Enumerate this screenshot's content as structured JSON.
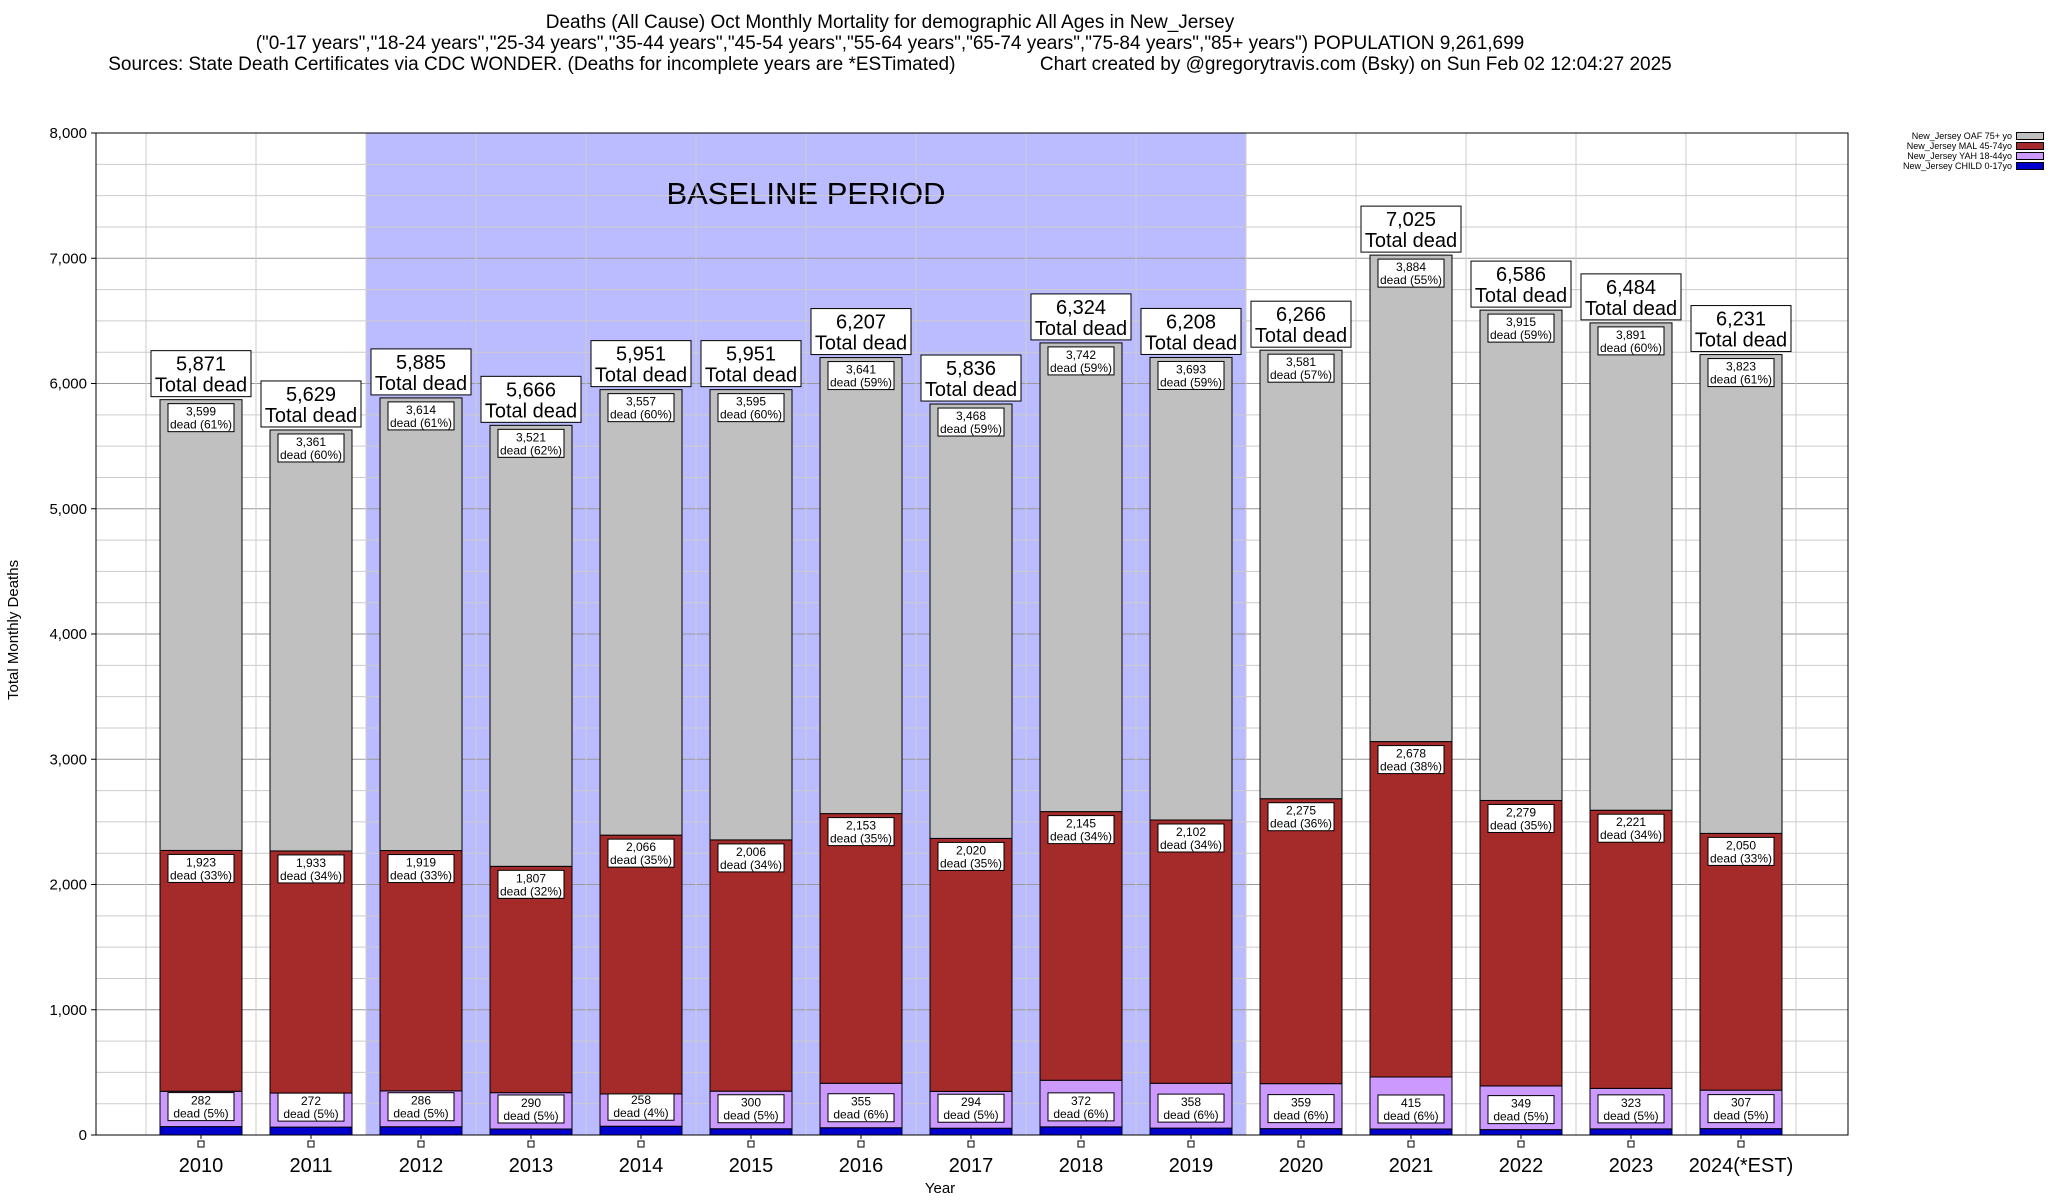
{
  "header": {
    "line1": "Deaths (All Cause) Oct Monthly Mortality for demographic All Ages in New_Jersey",
    "line2": "(\"0-17 years\",\"18-24 years\",\"25-34 years\",\"35-44 years\",\"45-54 years\",\"55-64 years\",\"65-74 years\",\"75-84 years\",\"85+ years\") POPULATION 9,261,699",
    "line3": "Sources: State Death Certificates via CDC WONDER. (Deaths for incomplete years are *ESTimated)                Chart created by @gregorytravis.com (Bsky) on Sun Feb 02 12:04:27 2025"
  },
  "chart_data": {
    "type": "bar",
    "stacked": true,
    "categories": [
      "2010",
      "2011",
      "2012",
      "2013",
      "2014",
      "2015",
      "2016",
      "2017",
      "2018",
      "2019",
      "2020",
      "2021",
      "2022",
      "2023",
      "2024(*EST)"
    ],
    "series": [
      {
        "name": "New_Jersey CHILD 0-17yo",
        "color": "#0000cc",
        "values": [
          67,
          63,
          66,
          48,
          70,
          50,
          58,
          54,
          65,
          55,
          51,
          48,
          43,
          49,
          51
        ]
      },
      {
        "name": "New_Jersey YAH 18-44yo",
        "color": "#cc99ff",
        "values": [
          282,
          272,
          286,
          290,
          258,
          300,
          355,
          294,
          372,
          358,
          359,
          415,
          349,
          323,
          307
        ],
        "pct": [
          "5%",
          "5%",
          "5%",
          "5%",
          "4%",
          "5%",
          "6%",
          "5%",
          "6%",
          "6%",
          "6%",
          "6%",
          "5%",
          "5%",
          "5%"
        ]
      },
      {
        "name": "New_Jersey MAL 45-74yo",
        "color": "#a52a2a",
        "values": [
          1923,
          1933,
          1919,
          1807,
          2066,
          2006,
          2153,
          2020,
          2145,
          2102,
          2275,
          2678,
          2279,
          2221,
          2050
        ],
        "pct": [
          "33%",
          "34%",
          "33%",
          "32%",
          "35%",
          "34%",
          "35%",
          "35%",
          "34%",
          "34%",
          "36%",
          "38%",
          "35%",
          "34%",
          "33%"
        ]
      },
      {
        "name": "New_Jersey OAF 75+ yo",
        "color": "#c0c0c0",
        "values": [
          3599,
          3361,
          3614,
          3521,
          3557,
          3595,
          3641,
          3468,
          3742,
          3693,
          3581,
          3884,
          3915,
          3891,
          3823
        ],
        "pct": [
          "61%",
          "60%",
          "61%",
          "62%",
          "60%",
          "60%",
          "59%",
          "59%",
          "59%",
          "59%",
          "57%",
          "55%",
          "59%",
          "60%",
          "61%"
        ]
      }
    ],
    "totals": [
      5871,
      5629,
      5885,
      5666,
      5951,
      5951,
      6207,
      5836,
      6324,
      6208,
      6266,
      7025,
      6586,
      6484,
      6231
    ],
    "total_label": "Total dead",
    "dead_label": "dead",
    "baseline": {
      "label": "BASELINE PERIOD",
      "from": "2012",
      "to": "2019",
      "color": "#bbbbff"
    },
    "xlabel": "Year",
    "ylabel": "Total Monthly Deaths",
    "ylim": [
      0,
      8000
    ],
    "yticks": [
      0,
      1000,
      2000,
      3000,
      4000,
      5000,
      6000,
      7000,
      8000
    ],
    "ytick_labels": [
      "0",
      "1,000",
      "2,000",
      "3,000",
      "4,000",
      "5,000",
      "6,000",
      "7,000",
      "8,000"
    ],
    "grid": true,
    "legend_position": "top-right outside"
  }
}
